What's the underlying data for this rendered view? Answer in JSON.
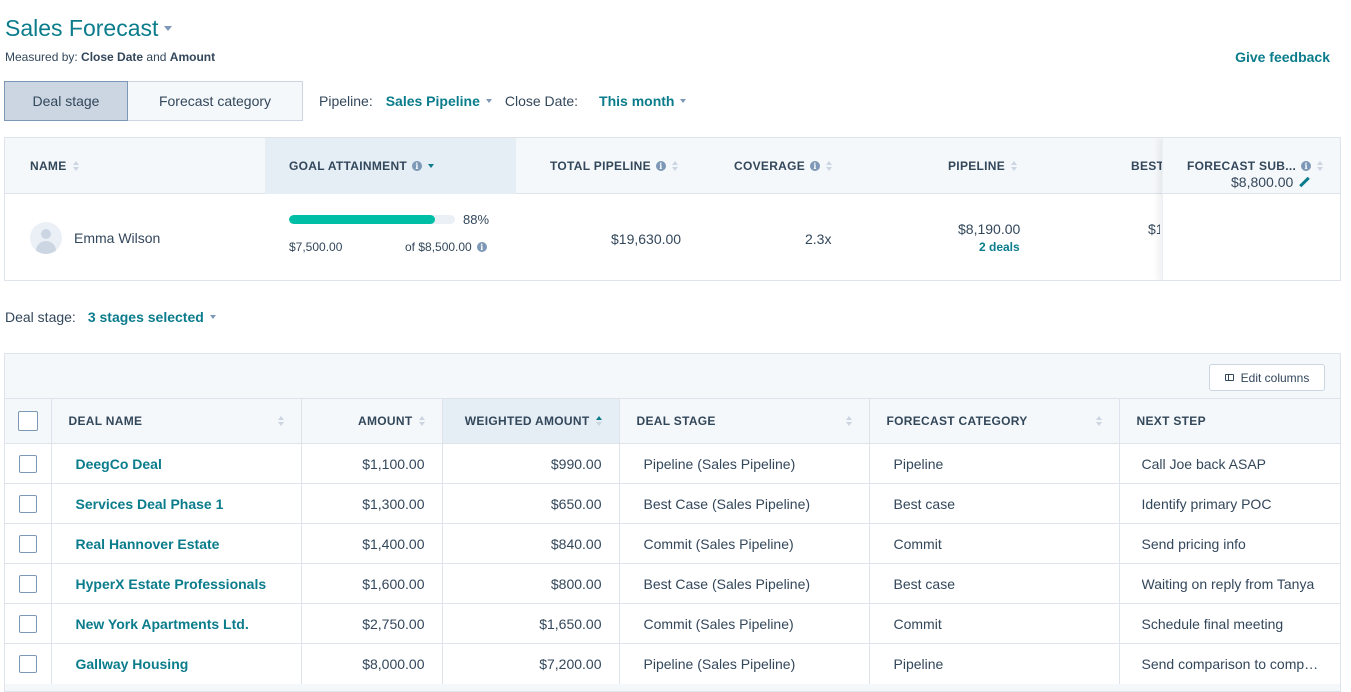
{
  "header": {
    "title": "Sales Forecast",
    "measured_prefix": "Measured by:",
    "measured_field1": "Close Date",
    "measured_and": "and",
    "measured_field2": "Amount",
    "feedback_label": "Give feedback"
  },
  "view_toggle": {
    "deal_stage": "Deal stage",
    "forecast_category": "Forecast category"
  },
  "filters": {
    "pipeline_label": "Pipeline:",
    "pipeline_value": "Sales Pipeline",
    "close_date_label": "Close Date:",
    "close_date_value": "This month"
  },
  "summary": {
    "headers": {
      "name": "NAME",
      "goal": "GOAL ATTAINMENT",
      "total_pipeline": "TOTAL PIPELINE",
      "coverage": "COVERAGE",
      "pipeline": "PIPELINE",
      "best": "BEST",
      "forecast_sub": "FORECAST SUB..."
    },
    "row": {
      "name": "Emma Wilson",
      "goal_fraction": 0.88,
      "goal_pct": "88%",
      "goal_current": "$7,500.00",
      "goal_of": "of $8,500.00",
      "total_pipeline": "$19,630.00",
      "coverage": "2.3x",
      "pipeline": "$8,190.00",
      "pipeline_deals": "2 deals",
      "best": "$1",
      "forecast_sub": "$8,800.00"
    }
  },
  "stage_filter": {
    "label": "Deal stage:",
    "value": "3 stages selected"
  },
  "deals_table": {
    "edit_columns": "Edit columns",
    "headers": {
      "deal_name": "DEAL NAME",
      "amount": "AMOUNT",
      "weighted": "WEIGHTED AMOUNT",
      "stage": "DEAL STAGE",
      "forecast": "FORECAST CATEGORY",
      "next": "NEXT STEP"
    },
    "rows": [
      {
        "name": "DeegCo Deal",
        "amount": "$1,100.00",
        "weighted": "$990.00",
        "stage": "Pipeline (Sales Pipeline)",
        "forecast": "Pipeline",
        "next": "Call Joe back ASAP"
      },
      {
        "name": "Services Deal Phase 1",
        "amount": "$1,300.00",
        "weighted": "$650.00",
        "stage": "Best Case (Sales Pipeline)",
        "forecast": "Best case",
        "next": "Identify primary POC"
      },
      {
        "name": "Real Hannover Estate",
        "amount": "$1,400.00",
        "weighted": "$840.00",
        "stage": "Commit (Sales Pipeline)",
        "forecast": "Commit",
        "next": "Send pricing info"
      },
      {
        "name": "HyperX Estate Professionals",
        "amount": "$1,600.00",
        "weighted": "$800.00",
        "stage": "Best Case (Sales Pipeline)",
        "forecast": "Best case",
        "next": "Waiting on reply from Tanya"
      },
      {
        "name": "New York Apartments Ltd.",
        "amount": "$2,750.00",
        "weighted": "$1,650.00",
        "stage": "Commit (Sales Pipeline)",
        "forecast": "Commit",
        "next": "Schedule final meeting"
      },
      {
        "name": "Gallway Housing",
        "amount": "$8,000.00",
        "weighted": "$7,200.00",
        "stage": "Pipeline (Sales Pipeline)",
        "forecast": "Pipeline",
        "next": "Send comparison to compet..."
      }
    ]
  },
  "colors": {
    "accent": "#0a7c8c",
    "progress": "#00bda5",
    "text": "#33475b"
  }
}
